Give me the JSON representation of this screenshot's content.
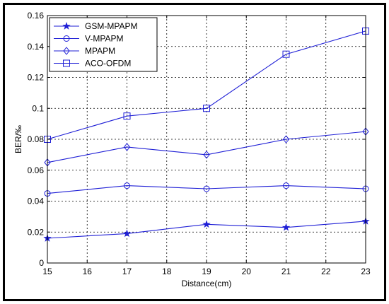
{
  "chart_data": {
    "type": "line",
    "title": "",
    "xlabel": "Distance(cm)",
    "ylabel": "BER/‰",
    "xlim": [
      15,
      23
    ],
    "ylim": [
      0,
      0.16
    ],
    "xticks": [
      15,
      16,
      17,
      18,
      19,
      20,
      21,
      22,
      23
    ],
    "yticks": [
      0,
      0.02,
      0.04,
      0.06,
      0.08,
      0.1,
      0.12,
      0.14,
      0.16
    ],
    "ytick_labels": [
      "0",
      "0.02",
      "0.04",
      "0.06",
      "0.08",
      "0.1",
      "0.12",
      "0.14",
      "0.16"
    ],
    "grid": true,
    "legend_position": "top-left",
    "line_color": "#1f1fd6",
    "series": [
      {
        "name": "GSM-MPAPM",
        "marker": "star",
        "x": [
          15,
          17,
          19,
          21,
          23
        ],
        "values": [
          0.016,
          0.019,
          0.025,
          0.023,
          0.027
        ]
      },
      {
        "name": "V-MPAPM",
        "marker": "circle",
        "x": [
          15,
          17,
          19,
          21,
          23
        ],
        "values": [
          0.045,
          0.05,
          0.048,
          0.05,
          0.048
        ]
      },
      {
        "name": "MPAPM",
        "marker": "diamond",
        "x": [
          15,
          17,
          19,
          21,
          23
        ],
        "values": [
          0.065,
          0.075,
          0.07,
          0.08,
          0.085
        ]
      },
      {
        "name": "ACO-OFDM",
        "marker": "square",
        "x": [
          15,
          17,
          19,
          21,
          23
        ],
        "values": [
          0.08,
          0.095,
          0.1,
          0.135,
          0.15
        ]
      }
    ]
  }
}
